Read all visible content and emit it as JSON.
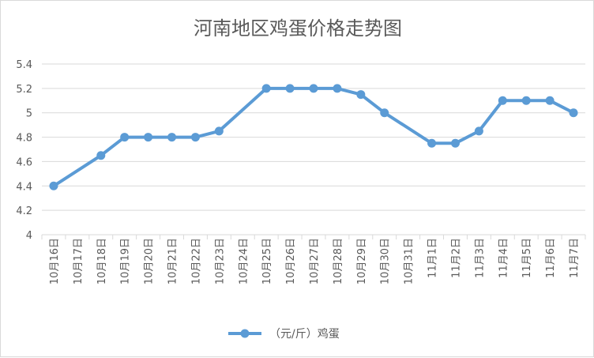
{
  "chart_data": {
    "type": "line",
    "title": "河南地区鸡蛋价格走势图",
    "xlabel": "",
    "ylabel": "",
    "ylim": [
      4,
      5.4
    ],
    "yticks": [
      "4",
      "4.2",
      "4.4",
      "4.6",
      "4.8",
      "5",
      "5.2",
      "5.4"
    ],
    "grid": true,
    "legend_position": "bottom",
    "categories": [
      "10月16日",
      "10月17日",
      "10月18日",
      "10月19日",
      "10月20日",
      "10月21日",
      "10月22日",
      "10月23日",
      "10月24日",
      "10月25日",
      "10月26日",
      "10月27日",
      "10月28日",
      "10月29日",
      "10月30日",
      "10月31日",
      "11月1日",
      "11月2日",
      "11月3日",
      "11月4日",
      "11月5日",
      "11月6日",
      "11月7日"
    ],
    "series": [
      {
        "name": "（元/斤）鸡蛋",
        "color": "#5b9bd5",
        "values": [
          4.4,
          null,
          4.65,
          4.8,
          4.8,
          4.8,
          4.8,
          4.85,
          null,
          5.2,
          5.2,
          5.2,
          5.2,
          5.15,
          5.0,
          null,
          4.75,
          4.75,
          4.85,
          5.1,
          5.1,
          5.1,
          5.0
        ]
      }
    ]
  }
}
